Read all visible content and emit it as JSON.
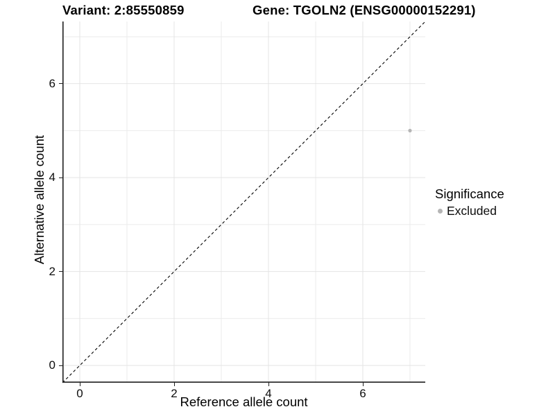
{
  "figure": {
    "title_variant": "Variant: 2:85550859",
    "title_gene": "Gene: TGOLN2 (ENSG00000152291)"
  },
  "axes": {
    "x": {
      "title": "Reference allele count"
    },
    "y": {
      "title": "Alternative allele count"
    }
  },
  "legend": {
    "title": "Significance",
    "items": [
      {
        "label": "Excluded",
        "color": "#b5b5b5"
      }
    ]
  },
  "chart_data": {
    "type": "scatter",
    "title": "Variant: 2:85550859 | Gene: TGOLN2 (ENSG00000152291)",
    "xlabel": "Reference allele count",
    "ylabel": "Alternative allele count",
    "xlim": [
      -0.368,
      7.324
    ],
    "ylim": [
      -0.368,
      7.324
    ],
    "x_ticks": [
      0,
      2,
      4,
      6
    ],
    "y_ticks": [
      0,
      2,
      4,
      6
    ],
    "grid": true,
    "grid_major": [
      0,
      2,
      4,
      6
    ],
    "grid_minor": [
      1,
      3,
      5,
      7
    ],
    "legend_position": "right",
    "legend_title": "Significance",
    "series": [
      {
        "name": "Excluded",
        "color": "#b5b5b5",
        "point_radius": 2.6,
        "points": [
          {
            "x": 7,
            "y": 5
          }
        ]
      }
    ],
    "reference_line": {
      "type": "identity",
      "slope": 1,
      "intercept": 0,
      "linetype": "dashed",
      "color": "#000000"
    },
    "colors": {
      "grid_major": "#e4e4e4",
      "grid_minor": "#ebebeb",
      "axis": "#1f1f1f",
      "background": "#ffffff"
    }
  }
}
